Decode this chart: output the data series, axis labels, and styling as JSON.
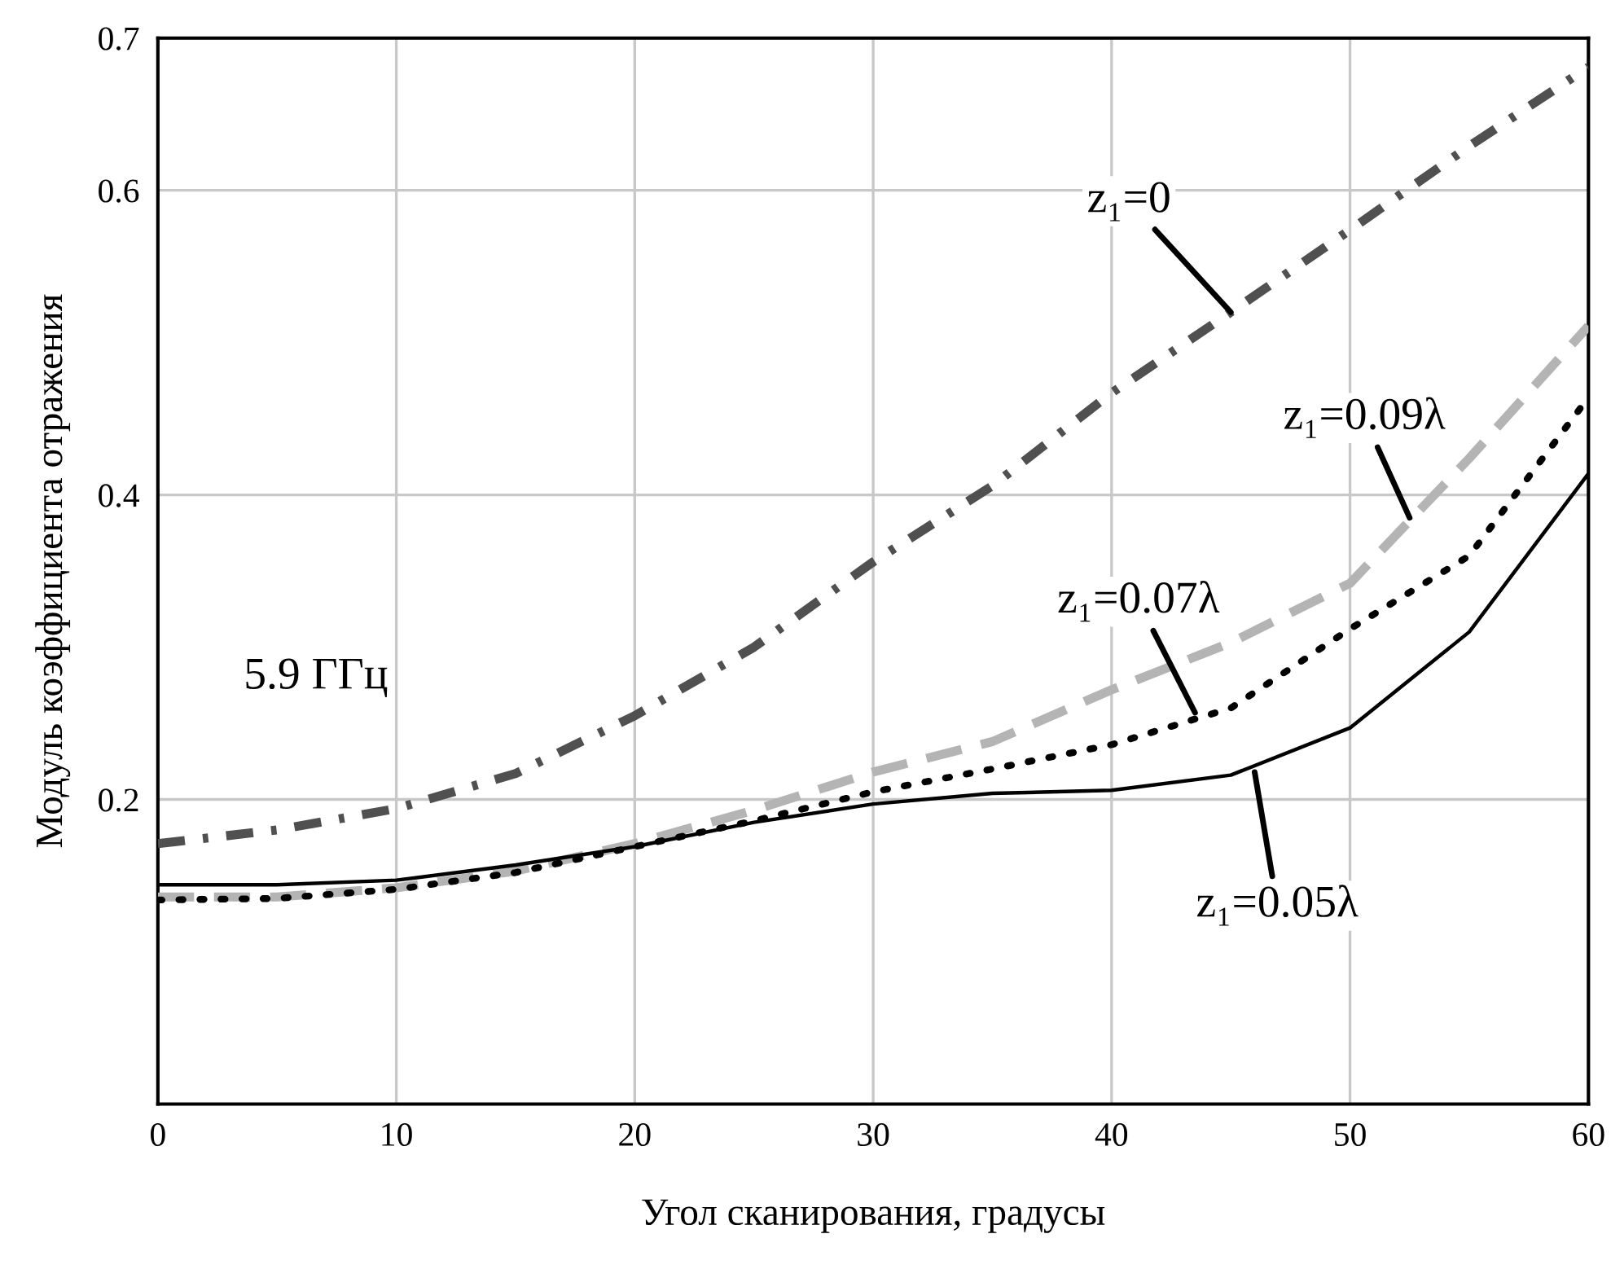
{
  "chart_data": {
    "type": "line",
    "xlabel": "Угол сканирования, градусы",
    "ylabel": "Модуль коэффициента отражения",
    "xlim": [
      0,
      60
    ],
    "xticks": [
      0,
      10,
      20,
      30,
      40,
      50,
      60
    ],
    "ylim": [
      0,
      0.7
    ],
    "yticks": [
      0.2,
      0.4,
      0.6,
      0.7
    ],
    "grid": true,
    "marker": "none",
    "x": [
      0,
      5,
      10,
      15,
      20,
      25,
      30,
      35,
      40,
      45,
      50,
      55,
      60
    ],
    "series": [
      {
        "color": "#505050",
        "line_style": "dashdot",
        "values": [
          0.171,
          0.18,
          0.194,
          0.217,
          0.255,
          0.3,
          0.356,
          0.406,
          0.467,
          0.52,
          0.574,
          0.629,
          0.681
        ]
      },
      {
        "color": "#b4b4b4",
        "line_style": "dashed",
        "values": [
          0.136,
          0.136,
          0.142,
          0.153,
          0.171,
          0.193,
          0.218,
          0.238,
          0.272,
          0.303,
          0.342,
          0.424,
          0.511
        ]
      },
      {
        "color": "#000000",
        "line_style": "dotted",
        "values": [
          0.134,
          0.135,
          0.141,
          0.152,
          0.169,
          0.186,
          0.205,
          0.22,
          0.236,
          0.26,
          0.312,
          0.36,
          0.464
        ]
      },
      {
        "color": "#000000",
        "line_style": "solid",
        "values": [
          0.144,
          0.144,
          0.147,
          0.157,
          0.169,
          0.185,
          0.197,
          0.204,
          0.206,
          0.216,
          0.247,
          0.31,
          0.414
        ]
      }
    ],
    "annotations": [
      {
        "text": "z₁=0",
        "x": 45,
        "y": 0.52
      },
      {
        "text": "z₁=0.09λ",
        "x": 52.5,
        "y": 0.385
      },
      {
        "text": "z₁=0.07λ",
        "x": 43.5,
        "y": 0.257
      },
      {
        "text": "z₁=0.05λ",
        "x": 46,
        "y": 0.218
      },
      "5.9 ГГц"
    ]
  }
}
